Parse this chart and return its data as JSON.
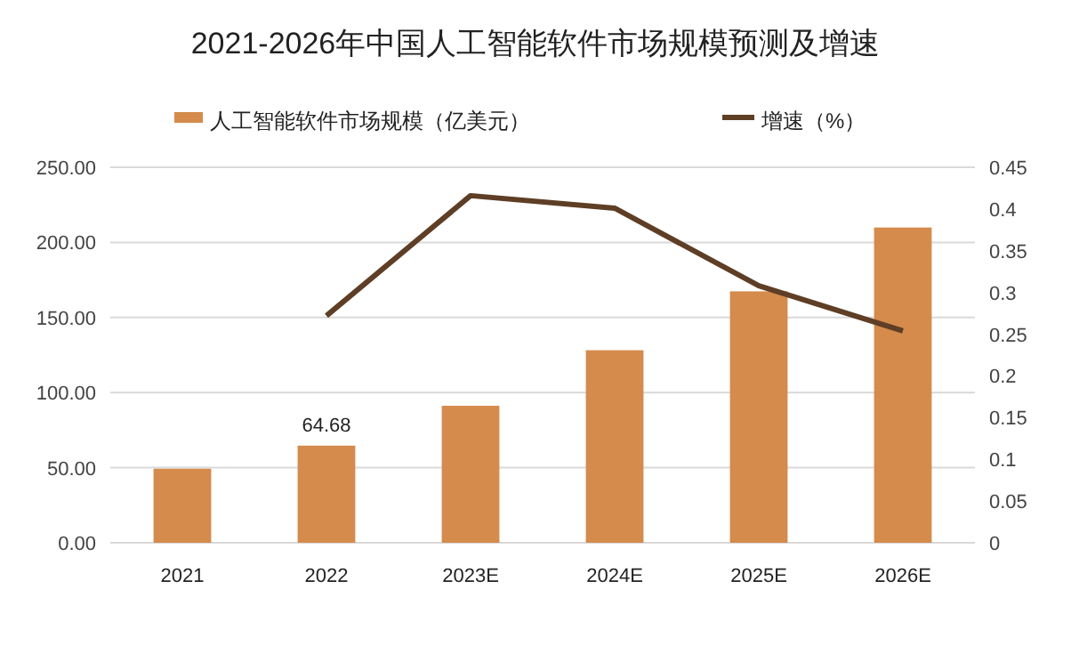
{
  "chart_data": {
    "type": "bar",
    "title": "2021-2026年中国人工智能软件市场规模预测及增速",
    "categories": [
      "2021",
      "2022",
      "2023E",
      "2024E",
      "2025E",
      "2026E"
    ],
    "series": [
      {
        "name": "人工智能软件市场规模（亿美元）",
        "color": "#d48b4c",
        "values": [
          49.3,
          64.68,
          91.2,
          128.2,
          167.4,
          209.9
        ],
        "value_labels": [
          null,
          "64.68",
          null,
          null,
          null,
          null
        ]
      },
      {
        "name": "增速（%）",
        "type": "line",
        "axis": "y2",
        "color": "#5e3e25",
        "values": [
          null,
          0.272,
          0.416,
          0.401,
          0.308,
          0.254
        ]
      }
    ],
    "ylim": [
      0,
      250
    ],
    "yticks": [
      {
        "value": 0,
        "label": "0.00"
      },
      {
        "value": 50,
        "label": "50.00"
      },
      {
        "value": 100,
        "label": "100.00"
      },
      {
        "value": 150,
        "label": "150.00"
      },
      {
        "value": 200,
        "label": "200.00"
      },
      {
        "value": 250,
        "label": "250.00"
      }
    ],
    "y2lim": [
      0,
      0.45
    ],
    "y2ticks": [
      0,
      0.05,
      0.1,
      0.15,
      0.2,
      0.25,
      0.3,
      0.35,
      0.4,
      0.45
    ],
    "grid": "y",
    "legend": "top"
  }
}
